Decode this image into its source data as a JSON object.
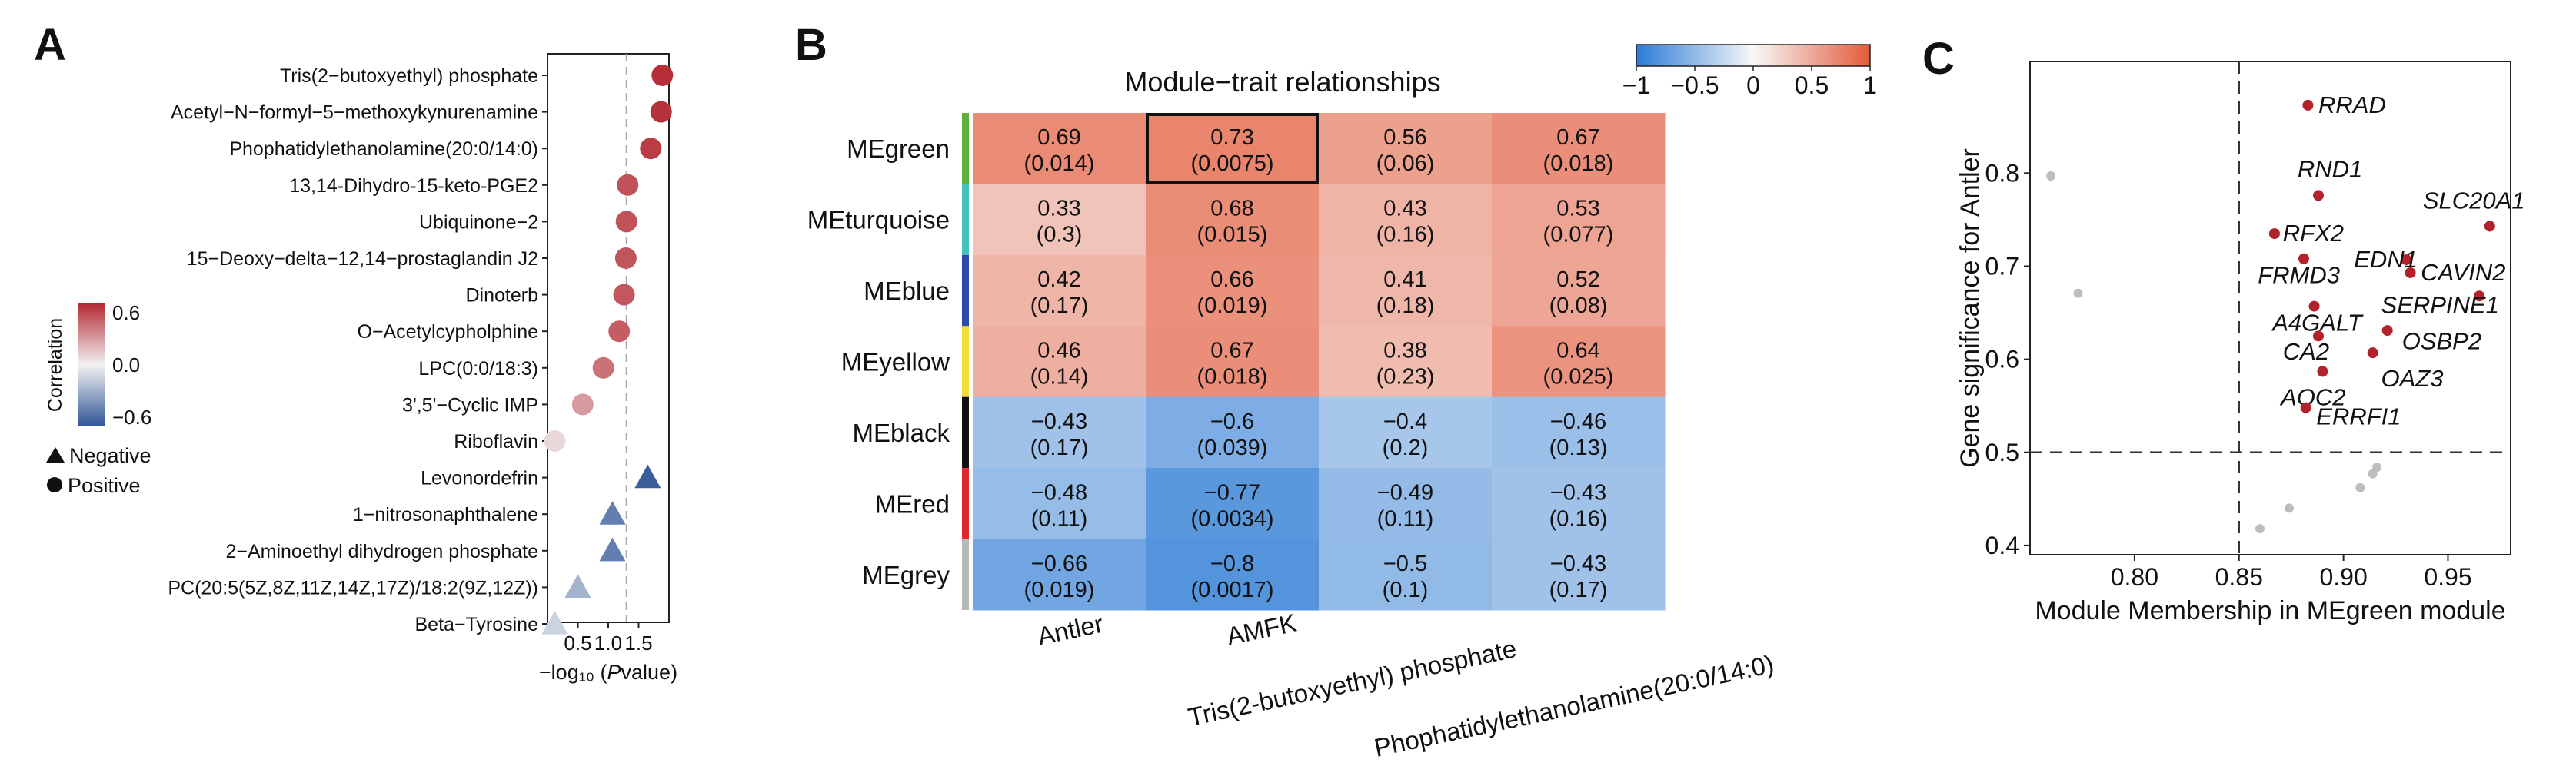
{
  "panels": {
    "a": "A",
    "b": "B",
    "c": "C"
  },
  "colors": {
    "neg": "#2f5596",
    "pos": "#b42a33",
    "mid": "#f2f2f2",
    "hm_neg": "#2b7bd6",
    "hm_pos": "#e35a3a",
    "point_sig": "#b3212b",
    "point_ns": "#bdbdbd"
  },
  "chart_data": [
    {
      "id": "A",
      "type": "scatter",
      "title": "",
      "xlabel": "−log₁₀ (Pvalue)",
      "xlabel_prefix": "−log₁₀ (",
      "xlabel_italic": "P",
      "xlabel_suffix": "value)",
      "xlim": [
        0.0,
        2.0
      ],
      "xticks": [
        0.5,
        1.0,
        1.5
      ],
      "xtick_labels": [
        "0.5",
        "1.0",
        "1.5"
      ],
      "threshold": 1.3,
      "legend": {
        "color_title": "Correlation",
        "color_ticks": [
          "0.6",
          "0.0",
          "−0.6"
        ],
        "color_range": [
          -0.6,
          0.6
        ],
        "shape_negative": "Negative",
        "shape_positive": "Positive"
      },
      "points": [
        {
          "name": "Tris(2−butoxyethyl) phosphate",
          "x": 1.89,
          "corr": 0.73,
          "sign": "positive"
        },
        {
          "name": "Acetyl−N−formyl−5−methoxykynurenamine",
          "x": 1.87,
          "corr": 0.72,
          "sign": "positive"
        },
        {
          "name": "Phophatidylethanolamine(20:0/14:0)",
          "x": 1.7,
          "corr": 0.68,
          "sign": "positive"
        },
        {
          "name": "13,14-Dihydro-15-keto-PGE2",
          "x": 1.32,
          "corr": 0.6,
          "sign": "positive"
        },
        {
          "name": "Ubiquinone−2",
          "x": 1.3,
          "corr": 0.6,
          "sign": "positive"
        },
        {
          "name": "15−Deoxy−delta−12,14−prostaglandin J2",
          "x": 1.29,
          "corr": 0.59,
          "sign": "positive"
        },
        {
          "name": "Dinoterb",
          "x": 1.26,
          "corr": 0.58,
          "sign": "positive"
        },
        {
          "name": "O−Acetylcypholphine",
          "x": 1.18,
          "corr": 0.56,
          "sign": "positive"
        },
        {
          "name": "LPC(0:0/18:3)",
          "x": 0.92,
          "corr": 0.48,
          "sign": "positive"
        },
        {
          "name": "3',5'−Cyclic IMP",
          "x": 0.58,
          "corr": 0.33,
          "sign": "positive"
        },
        {
          "name": "Riboflavin",
          "x": 0.12,
          "corr": 0.1,
          "sign": "positive"
        },
        {
          "name": "Levonordefrin",
          "x": 1.65,
          "corr": -0.7,
          "sign": "negative"
        },
        {
          "name": "1−nitrosonaphthalene",
          "x": 1.07,
          "corr": -0.55,
          "sign": "negative"
        },
        {
          "name": "2−Aminoethyl dihydrogen phosphate",
          "x": 1.07,
          "corr": -0.55,
          "sign": "negative"
        },
        {
          "name": "PC(20:5(5Z,8Z,11Z,14Z,17Z)/18:2(9Z,12Z))",
          "x": 0.5,
          "corr": -0.3,
          "sign": "negative"
        },
        {
          "name": "Beta−Tyrosine",
          "x": 0.12,
          "corr": -0.15,
          "sign": "negative"
        }
      ]
    },
    {
      "id": "B",
      "type": "heatmap",
      "title": "Module−trait relationships",
      "colorbar": {
        "range": [
          -1,
          1
        ],
        "ticks": [
          "−1",
          "−0.5",
          "0",
          "0.5",
          "1"
        ],
        "tick_values": [
          -1,
          -0.5,
          0,
          0.5,
          1
        ]
      },
      "rows": [
        "MEgreen",
        "MEturquoise",
        "MEblue",
        "MEyellow",
        "MEblack",
        "MEred",
        "MEgrey"
      ],
      "row_colors": [
        "#5fb13f",
        "#46c1c0",
        "#2c4aa8",
        "#f2dd3c",
        "#111111",
        "#e1262c",
        "#b9b9b9"
      ],
      "columns": [
        "Antler",
        "AMFK",
        "Tris(2-butoxyethyl) phosphate",
        "Phophatidylethanolamine(20:0/14:0)"
      ],
      "values": [
        [
          0.69,
          0.73,
          0.56,
          0.67
        ],
        [
          0.33,
          0.68,
          0.43,
          0.53
        ],
        [
          0.42,
          0.66,
          0.41,
          0.52
        ],
        [
          0.46,
          0.67,
          0.38,
          0.64
        ],
        [
          -0.43,
          -0.6,
          -0.4,
          -0.46
        ],
        [
          -0.48,
          -0.77,
          -0.49,
          -0.43
        ],
        [
          -0.66,
          -0.8,
          -0.5,
          -0.43
        ]
      ],
      "labels": [
        [
          "0.69",
          "0.73",
          "0.56",
          "0.67"
        ],
        [
          "0.33",
          "0.68",
          "0.43",
          "0.53"
        ],
        [
          "0.42",
          "0.66",
          "0.41",
          "0.52"
        ],
        [
          "0.46",
          "0.67",
          "0.38",
          "0.64"
        ],
        [
          "−0.43",
          "−0.6",
          "−0.4",
          "−0.46"
        ],
        [
          "−0.48",
          "−0.77",
          "−0.49",
          "−0.43"
        ],
        [
          "−0.66",
          "−0.8",
          "−0.5",
          "−0.43"
        ]
      ],
      "pvalues": [
        [
          "(0.014)",
          "(0.0075)",
          "(0.06)",
          "(0.018)"
        ],
        [
          "(0.3)",
          "(0.015)",
          "(0.16)",
          "(0.077)"
        ],
        [
          "(0.17)",
          "(0.019)",
          "(0.18)",
          "(0.08)"
        ],
        [
          "(0.14)",
          "(0.018)",
          "(0.23)",
          "(0.025)"
        ],
        [
          "(0.17)",
          "(0.039)",
          "(0.2)",
          "(0.13)"
        ],
        [
          "(0.11)",
          "(0.0034)",
          "(0.11)",
          "(0.16)"
        ],
        [
          "(0.019)",
          "(0.0017)",
          "(0.1)",
          "(0.17)"
        ]
      ],
      "highlight": {
        "row": 0,
        "col": 1
      }
    },
    {
      "id": "C",
      "type": "scatter",
      "title": "",
      "xlabel": "Module Membership in MEgreen module",
      "ylabel": "Gene significance for Antler",
      "xlim": [
        0.75,
        0.98
      ],
      "ylim": [
        0.39,
        0.92
      ],
      "xticks": [
        0.8,
        0.85,
        0.9,
        0.95
      ],
      "xtick_labels": [
        "0.80",
        "0.85",
        "0.90",
        "0.95"
      ],
      "yticks": [
        0.4,
        0.5,
        0.6,
        0.7,
        0.8
      ],
      "ytick_labels": [
        "0.4",
        "0.5",
        "0.6",
        "0.7",
        "0.8"
      ],
      "vline": 0.85,
      "hline": 0.5,
      "genes": [
        {
          "name": "RRAD",
          "x": 0.883,
          "y": 0.873,
          "label_dx": 0.005,
          "label_dy": 0.0
        },
        {
          "name": "RND1",
          "x": 0.888,
          "y": 0.776,
          "label_dx": -0.01,
          "label_dy": 0.028
        },
        {
          "name": "SLC20A1",
          "x": 0.97,
          "y": 0.743,
          "label_dx": -0.032,
          "label_dy": 0.027
        },
        {
          "name": "RFX2",
          "x": 0.867,
          "y": 0.735,
          "label_dx": 0.004,
          "label_dy": 0.0
        },
        {
          "name": "EDN1",
          "x": 0.93,
          "y": 0.707,
          "label_dx": -0.025,
          "label_dy": 0.0
        },
        {
          "name": "FRMD3",
          "x": 0.881,
          "y": 0.708,
          "label_dx": -0.022,
          "label_dy": -0.018
        },
        {
          "name": "CAVIN2",
          "x": 0.932,
          "y": 0.693,
          "label_dx": 0.005,
          "label_dy": 0.0
        },
        {
          "name": "SERPINE1",
          "x": 0.965,
          "y": 0.668,
          "label_dx": -0.047,
          "label_dy": -0.01
        },
        {
          "name": "A4GALT",
          "x": 0.886,
          "y": 0.657,
          "label_dx": -0.02,
          "label_dy": -0.018
        },
        {
          "name": "OSBP2",
          "x": 0.921,
          "y": 0.631,
          "label_dx": 0.007,
          "label_dy": -0.012
        },
        {
          "name": "CA2",
          "x": 0.888,
          "y": 0.625,
          "label_dx": -0.017,
          "label_dy": -0.017
        },
        {
          "name": "OAZ3",
          "x": 0.914,
          "y": 0.607,
          "label_dx": 0.004,
          "label_dy": -0.028
        },
        {
          "name": "AOC2",
          "x": 0.89,
          "y": 0.587,
          "label_dx": -0.02,
          "label_dy": -0.028
        },
        {
          "name": "ERRFI1",
          "x": 0.882,
          "y": 0.548,
          "label_dx": 0.005,
          "label_dy": -0.01
        }
      ],
      "nonsig": [
        {
          "x": 0.76,
          "y": 0.797
        },
        {
          "x": 0.773,
          "y": 0.671
        },
        {
          "x": 0.86,
          "y": 0.418
        },
        {
          "x": 0.874,
          "y": 0.44
        },
        {
          "x": 0.908,
          "y": 0.462
        },
        {
          "x": 0.914,
          "y": 0.477
        },
        {
          "x": 0.916,
          "y": 0.484
        }
      ]
    }
  ]
}
